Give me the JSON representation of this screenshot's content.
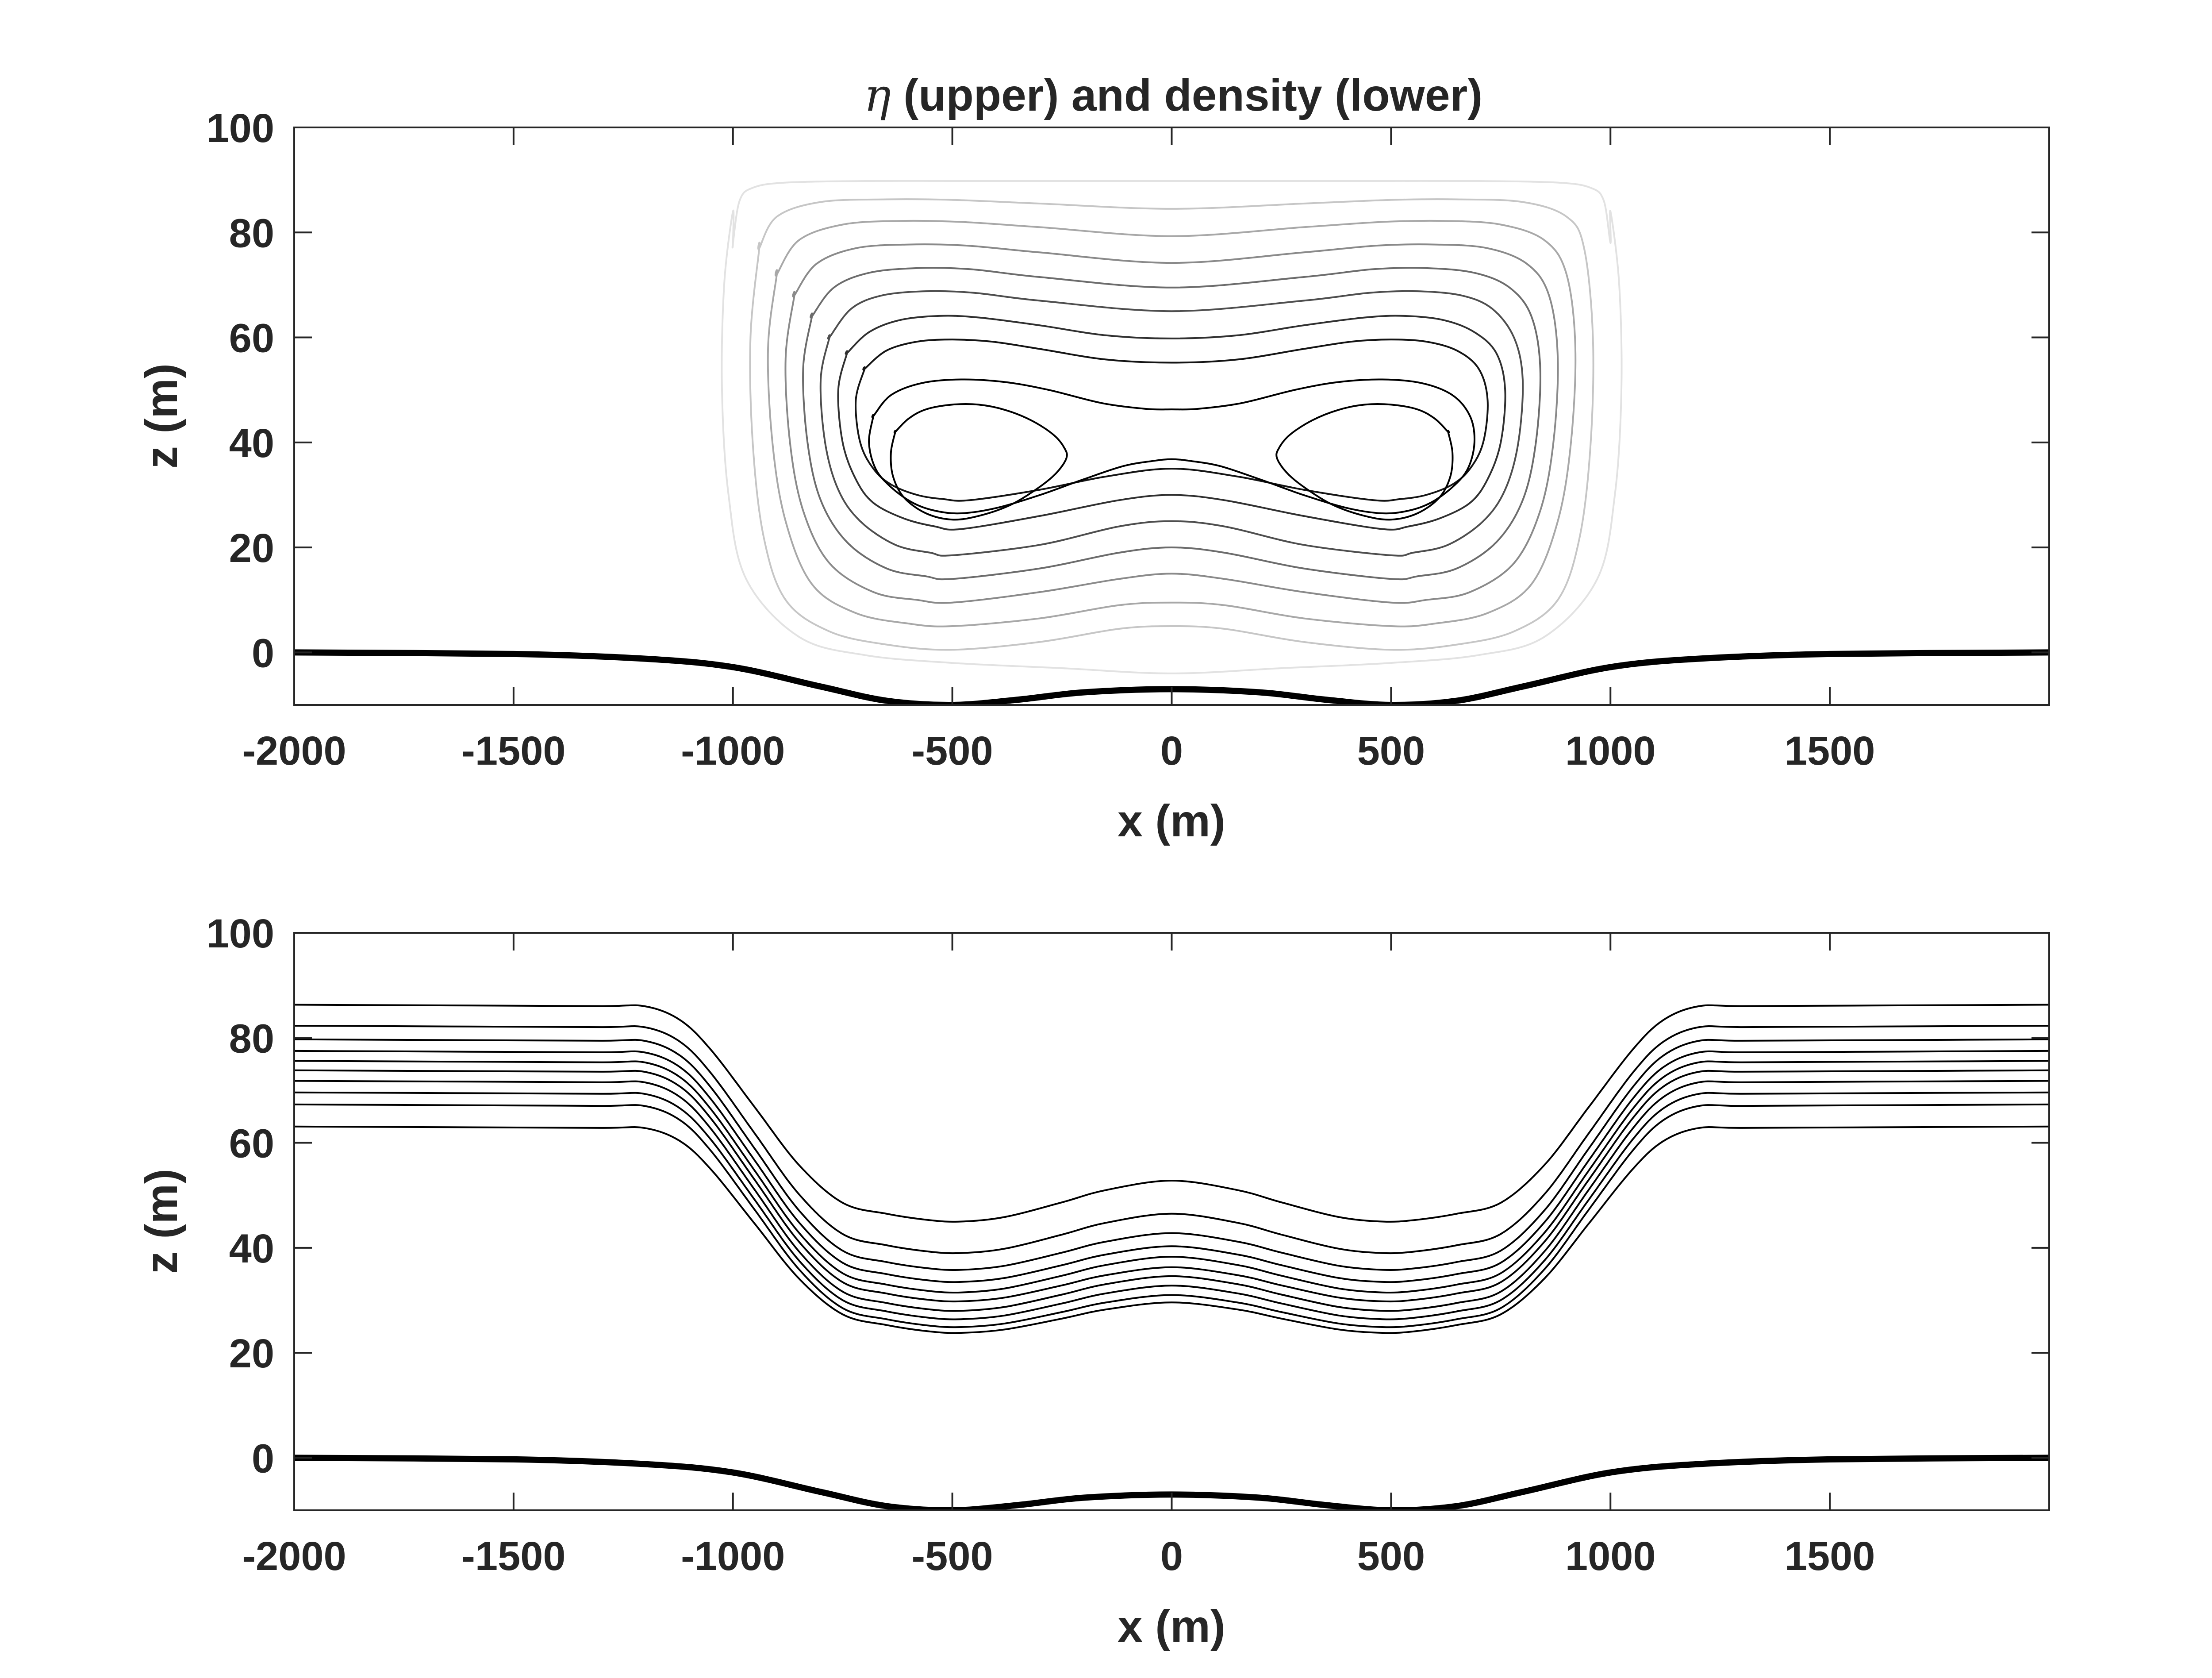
{
  "chart_data": [
    {
      "type": "contour",
      "title_symbol": "η",
      "title_rest": " (upper) and density (lower)",
      "xlabel": "x (m)",
      "ylabel": "z (m)",
      "xlim": [
        -2000,
        2000
      ],
      "ylim": [
        -10,
        100
      ],
      "xticks": [
        -2000,
        -1500,
        -1000,
        -500,
        0,
        500,
        1000,
        1500
      ],
      "yticks": [
        0,
        20,
        40,
        60,
        80,
        100
      ],
      "grid": false,
      "bottom": {
        "x": [
          -2000,
          -1500,
          -1200,
          -1000,
          -800,
          -650,
          -500,
          -350,
          -200,
          0,
          200,
          350,
          500,
          650,
          800,
          1000,
          1200,
          1500,
          2000
        ],
        "z": [
          0,
          -0.3,
          -1.2,
          -2.8,
          -6.5,
          -9.2,
          -10,
          -9.0,
          -7.6,
          -7.0,
          -7.6,
          -9.0,
          -10,
          -9.2,
          -6.5,
          -2.8,
          -1.2,
          -0.3,
          0
        ]
      },
      "contours": [
        {
          "gray": "#e2e2e2",
          "x": [
            -1000,
            -1000,
            -1020,
            -1025,
            -1010,
            -970,
            -850,
            -700,
            -500,
            -250,
            0,
            250,
            500,
            700,
            850,
            970,
            1010,
            1025,
            1020,
            1000,
            1000,
            985,
            955,
            880,
            700,
            500,
            300,
            120,
            0,
            -120,
            -300,
            -500,
            -700,
            -880,
            -955,
            -985,
            -1000
          ],
          "z": [
            78,
            84,
            70,
            50,
            30,
            14,
            3,
            -0.5,
            -2,
            -3,
            -4,
            -3,
            -2,
            -0.5,
            3,
            14,
            30,
            50,
            70,
            84,
            78,
            86,
            88.5,
            89.5,
            89.8,
            89.8,
            89.8,
            89.8,
            89.8,
            89.8,
            89.8,
            89.8,
            89.8,
            89.5,
            88.5,
            86,
            78
          ]
        },
        {
          "gray": "#c6c6c6",
          "x": [
            -940,
            -960,
            -955,
            -930,
            -880,
            -780,
            -650,
            -500,
            -300,
            -120,
            0,
            120,
            300,
            500,
            650,
            780,
            880,
            930,
            955,
            960,
            940,
            900,
            800,
            650,
            500,
            300,
            0,
            -300,
            -500,
            -650,
            -800,
            -900,
            -940
          ],
          "z": [
            77,
            60,
            40,
            22,
            10,
            4,
            1.5,
            0.5,
            2,
            4.5,
            5,
            4.5,
            2,
            0.5,
            1.5,
            4,
            10,
            22,
            40,
            60,
            77,
            83,
            85.8,
            86.3,
            86.2,
            85.5,
            84.5,
            85.5,
            86.2,
            86.3,
            85.8,
            83,
            77
          ]
        },
        {
          "gray": "#a8a8a8",
          "x": [
            -900,
            -920,
            -910,
            -880,
            -820,
            -720,
            -600,
            -500,
            -300,
            -120,
            0,
            120,
            300,
            500,
            600,
            720,
            820,
            880,
            910,
            920,
            900,
            850,
            750,
            620,
            480,
            300,
            0,
            -300,
            -480,
            -620,
            -750,
            -850,
            -900
          ],
          "z": [
            72,
            58,
            40,
            25,
            13,
            7.5,
            5.5,
            5,
            6.5,
            9,
            9.5,
            9,
            6.5,
            5,
            5.5,
            7.5,
            13,
            25,
            40,
            58,
            72,
            78.5,
            81.5,
            82.2,
            82.0,
            81.0,
            79.3,
            81.0,
            82.0,
            82.2,
            81.5,
            78.5,
            72
          ]
        },
        {
          "gray": "#8a8a8a",
          "x": [
            -860,
            -880,
            -870,
            -840,
            -780,
            -680,
            -580,
            -500,
            -300,
            -120,
            0,
            120,
            300,
            500,
            580,
            680,
            780,
            840,
            870,
            880,
            860,
            810,
            720,
            600,
            470,
            300,
            0,
            -300,
            -470,
            -600,
            -720,
            -810,
            -860
          ],
          "z": [
            68,
            56,
            40,
            27,
            17,
            11.5,
            10,
            9.5,
            11.5,
            14,
            15,
            14,
            11.5,
            9.5,
            10,
            11.5,
            17,
            27,
            40,
            56,
            68,
            74,
            77,
            77.7,
            77.5,
            76.2,
            74.2,
            76.2,
            77.5,
            77.7,
            77,
            74,
            68
          ]
        },
        {
          "gray": "#6c6c6c",
          "x": [
            -820,
            -840,
            -830,
            -800,
            -740,
            -650,
            -560,
            -500,
            -300,
            -120,
            0,
            120,
            300,
            500,
            560,
            650,
            740,
            800,
            830,
            840,
            820,
            770,
            690,
            580,
            460,
            300,
            0,
            -300,
            -460,
            -580,
            -690,
            -770,
            -820
          ],
          "z": [
            64,
            54,
            40,
            29,
            21,
            16,
            14.5,
            14,
            16,
            19,
            20,
            19,
            16,
            14,
            14.5,
            16,
            21,
            29,
            40,
            54,
            64,
            69.5,
            72.3,
            73.2,
            73.0,
            71.5,
            69.5,
            71.5,
            73.0,
            73.2,
            72.3,
            69.5,
            64
          ]
        },
        {
          "gray": "#4e4e4e",
          "x": [
            -780,
            -800,
            -790,
            -760,
            -710,
            -630,
            -550,
            -500,
            -300,
            -120,
            0,
            120,
            300,
            500,
            550,
            630,
            710,
            760,
            790,
            800,
            780,
            730,
            660,
            560,
            450,
            300,
            0,
            -300,
            -450,
            -560,
            -660,
            -730,
            -780
          ],
          "z": [
            60,
            52,
            40,
            31,
            25,
            20.5,
            19,
            18.5,
            20.5,
            24,
            25,
            24,
            20.5,
            18.5,
            19,
            20.5,
            25,
            31,
            40,
            52,
            60,
            65.5,
            68,
            68.8,
            68.5,
            67,
            65,
            67,
            68.5,
            68.8,
            68,
            65.5,
            60
          ]
        },
        {
          "gray": "#303030",
          "x": [
            -740,
            -760,
            -750,
            -720,
            -680,
            -610,
            -540,
            -480,
            -300,
            -120,
            0,
            120,
            300,
            480,
            540,
            610,
            680,
            720,
            750,
            760,
            740,
            690,
            620,
            530,
            440,
            300,
            150,
            0,
            -150,
            -300,
            -440,
            -530,
            -620,
            -690,
            -740
          ],
          "z": [
            57,
            50,
            40,
            33,
            28.5,
            25.5,
            24,
            23.5,
            26,
            29,
            30,
            29,
            26,
            23.5,
            24,
            25.5,
            28.5,
            33,
            40,
            50,
            57,
            61,
            63.3,
            64.1,
            63.8,
            62.3,
            60.4,
            59.8,
            60.4,
            62.3,
            63.8,
            64.1,
            63.3,
            61,
            57
          ]
        },
        {
          "gray": "#141414",
          "x": [
            -700,
            -720,
            -710,
            -680,
            -640,
            -580,
            -520,
            -460,
            -300,
            -150,
            0,
            150,
            300,
            460,
            520,
            580,
            640,
            680,
            710,
            720,
            700,
            650,
            580,
            500,
            410,
            300,
            150,
            0,
            -150,
            -300,
            -410,
            -500,
            -580,
            -650,
            -700
          ],
          "z": [
            54,
            48,
            40,
            35,
            32,
            30,
            29.2,
            29,
            31,
            33.5,
            35,
            33.5,
            31,
            29,
            29.2,
            30,
            32,
            35,
            40,
            48,
            54,
            57.5,
            59.2,
            59.6,
            59.2,
            57.8,
            55.8,
            55.2,
            55.8,
            57.8,
            59.2,
            59.6,
            59.2,
            57.5,
            54
          ]
        },
        {
          "gray": "#000000",
          "x": [
            -680,
            -690,
            -675,
            -640,
            -590,
            -540,
            -480,
            -400,
            -300,
            -200,
            -110,
            -40,
            0,
            40,
            110,
            200,
            300,
            400,
            480,
            540,
            590,
            640,
            675,
            690,
            680,
            640,
            570,
            480,
            380,
            280,
            160,
            60,
            0,
            -60,
            -160,
            -280,
            -380,
            -480,
            -570,
            -640,
            -680
          ],
          "z": [
            45,
            40,
            35,
            31.5,
            28.5,
            27,
            26.5,
            27.5,
            30,
            33,
            35.5,
            36.5,
            36.8,
            36.5,
            35.5,
            33,
            30,
            27.5,
            26.5,
            27,
            28.5,
            31.5,
            35,
            40,
            45,
            49,
            51.3,
            52,
            51.5,
            50,
            47.5,
            46.4,
            46.3,
            46.4,
            47.5,
            50,
            51.5,
            52,
            51.3,
            49,
            45
          ]
        },
        {
          "gray": "#000000",
          "x": [
            -630,
            -600,
            -560,
            -500,
            -440,
            -380,
            -320,
            -270,
            -245,
            -240,
            -265,
            -310,
            -370,
            -440,
            -500,
            -560,
            -610,
            -635,
            -640,
            -630
          ],
          "z": [
            42,
            44.5,
            46.3,
            47.2,
            47.2,
            46.2,
            44.2,
            41.5,
            39,
            37,
            34,
            31,
            28,
            26,
            25.3,
            26.5,
            29.5,
            33.5,
            38,
            42
          ]
        },
        {
          "gray": "#000000",
          "x": [
            630,
            600,
            560,
            500,
            440,
            380,
            320,
            270,
            245,
            240,
            265,
            310,
            370,
            440,
            500,
            560,
            610,
            635,
            640,
            630
          ],
          "z": [
            42,
            44.5,
            46.3,
            47.2,
            47.2,
            46.2,
            44.2,
            41.5,
            39,
            37,
            34,
            31,
            28,
            26,
            25.3,
            26.5,
            29.5,
            33.5,
            38,
            42
          ]
        }
      ]
    },
    {
      "type": "contour",
      "xlabel": "x (m)",
      "ylabel": "z (m)",
      "xlim": [
        -2000,
        2000
      ],
      "ylim": [
        -10,
        100
      ],
      "xticks": [
        -2000,
        -1500,
        -1000,
        -500,
        0,
        500,
        1000,
        1500
      ],
      "yticks": [
        0,
        20,
        40,
        60,
        80,
        100
      ],
      "grid": false,
      "bottom": {
        "x": [
          -2000,
          -1500,
          -1200,
          -1000,
          -800,
          -650,
          -500,
          -350,
          -200,
          0,
          200,
          350,
          500,
          650,
          800,
          1000,
          1200,
          1500,
          2000
        ],
        "z": [
          0,
          -0.3,
          -1.2,
          -2.8,
          -6.5,
          -9.2,
          -10,
          -9.0,
          -7.6,
          -7.0,
          -7.6,
          -9.0,
          -10,
          -9.2,
          -6.5,
          -2.8,
          -1.2,
          -0.3,
          0
        ]
      },
      "isopycnals": [
        {
          "far": 86.3,
          "trough": 45.0,
          "center": 52.8
        },
        {
          "far": 82.3,
          "trough": 39.0,
          "center": 46.5
        },
        {
          "far": 79.7,
          "trough": 35.8,
          "center": 42.8
        },
        {
          "far": 77.5,
          "trough": 33.5,
          "center": 40.3
        },
        {
          "far": 75.6,
          "trough": 31.5,
          "center": 38.3
        },
        {
          "far": 73.8,
          "trough": 29.8,
          "center": 36.3
        },
        {
          "far": 71.8,
          "trough": 28.0,
          "center": 34.6
        },
        {
          "far": 69.6,
          "trough": 26.4,
          "center": 32.8
        },
        {
          "far": 67.3,
          "trough": 24.9,
          "center": 31.0
        },
        {
          "far": 63.1,
          "trough": 23.8,
          "center": 29.6
        }
      ]
    }
  ]
}
